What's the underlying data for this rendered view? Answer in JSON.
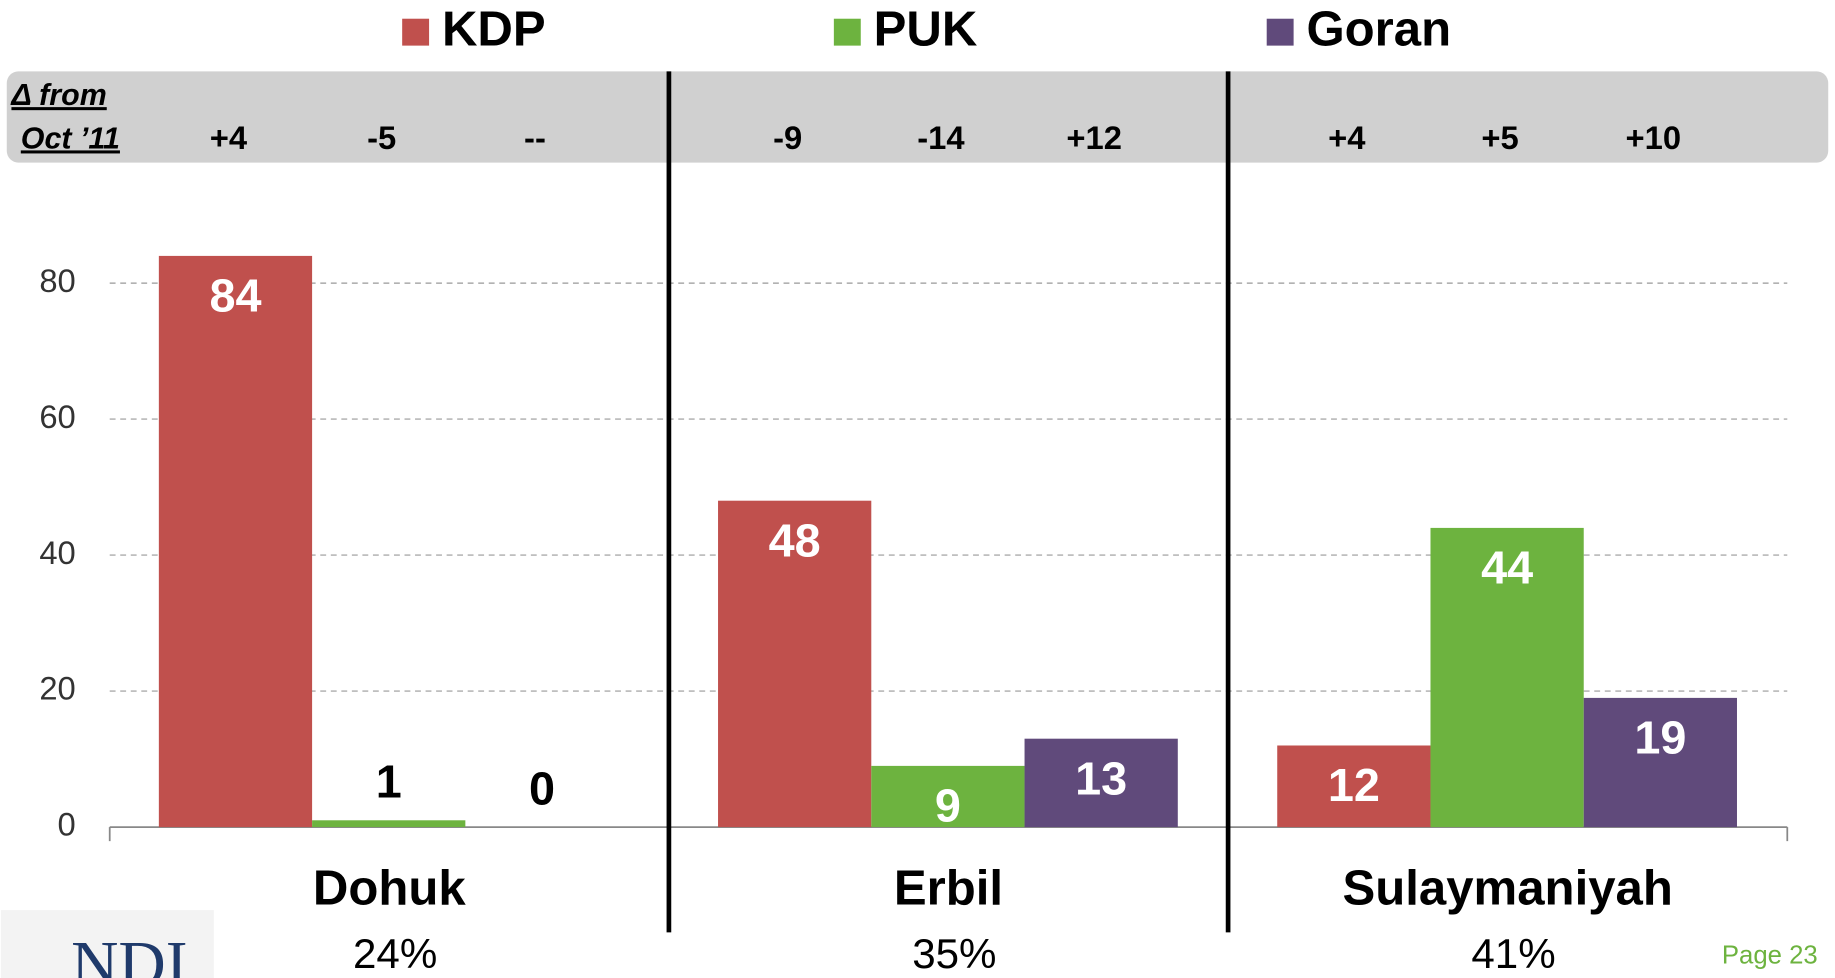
{
  "chart_data": {
    "type": "bar",
    "categories": [
      "Dohuk",
      "Erbil",
      "Sulaymaniyah"
    ],
    "category_shares": [
      "24%",
      "35%",
      "41%"
    ],
    "series": [
      {
        "name": "KDP",
        "color": "#c0504d",
        "values": [
          84,
          48,
          12
        ],
        "deltas": [
          "+4",
          "-9",
          "+4"
        ]
      },
      {
        "name": "PUK",
        "color": "#6db33f",
        "values": [
          1,
          9,
          44
        ],
        "deltas": [
          "-5",
          "-14",
          "+5"
        ]
      },
      {
        "name": "Goran",
        "color": "#604a7b",
        "values": [
          0,
          13,
          19
        ],
        "deltas": [
          "--",
          "+12",
          "+10"
        ]
      }
    ],
    "delta_label": [
      "Δ from",
      "Oct  ’11"
    ],
    "ylim": [
      0,
      90
    ],
    "yticks": [
      0,
      20,
      40,
      60,
      80
    ],
    "grid": true,
    "legend": "top"
  },
  "footer": {
    "logo": "NDI",
    "page": "Page 23"
  }
}
